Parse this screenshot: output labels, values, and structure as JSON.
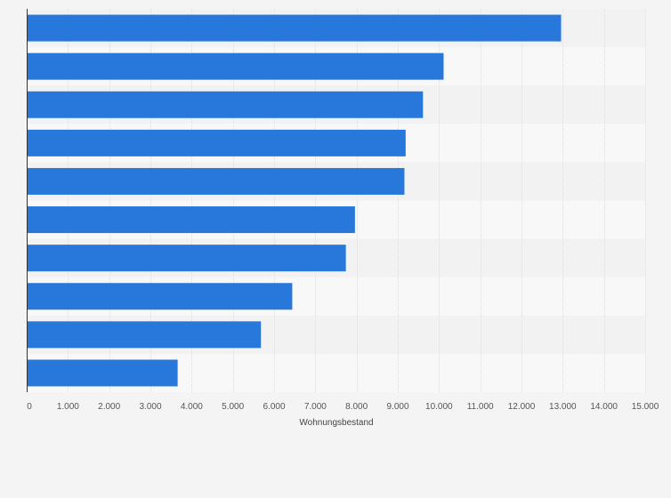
{
  "chart_data": {
    "type": "bar",
    "orientation": "horizontal",
    "title": "",
    "xlabel": "Wohnungsbestand",
    "ylabel": "",
    "categories": [
      "",
      "",
      "",
      "",
      "",
      "",
      "",
      "",
      "",
      ""
    ],
    "values": [
      12950,
      10100,
      9600,
      9180,
      9150,
      7950,
      7730,
      6430,
      5670,
      3650
    ],
    "xlim": [
      0,
      15000
    ],
    "xticks": [
      0,
      1000,
      2000,
      3000,
      4000,
      5000,
      6000,
      7000,
      8000,
      9000,
      10000,
      11000,
      12000,
      13000,
      14000,
      15000
    ],
    "xtick_labels": [
      "0",
      "1.000",
      "2.000",
      "3.000",
      "4.000",
      "5.000",
      "6.000",
      "7.000",
      "8.000",
      "9.000",
      "10.000",
      "11.000",
      "12.000",
      "13.000",
      "14.000",
      "15.000"
    ],
    "grid": true,
    "legend": "none",
    "colors": {
      "bar": "#2878dc",
      "band_dark": "#f2f2f2",
      "band_light": "#f8f8f8",
      "grid": "#dedede",
      "axis": "#333333"
    }
  }
}
